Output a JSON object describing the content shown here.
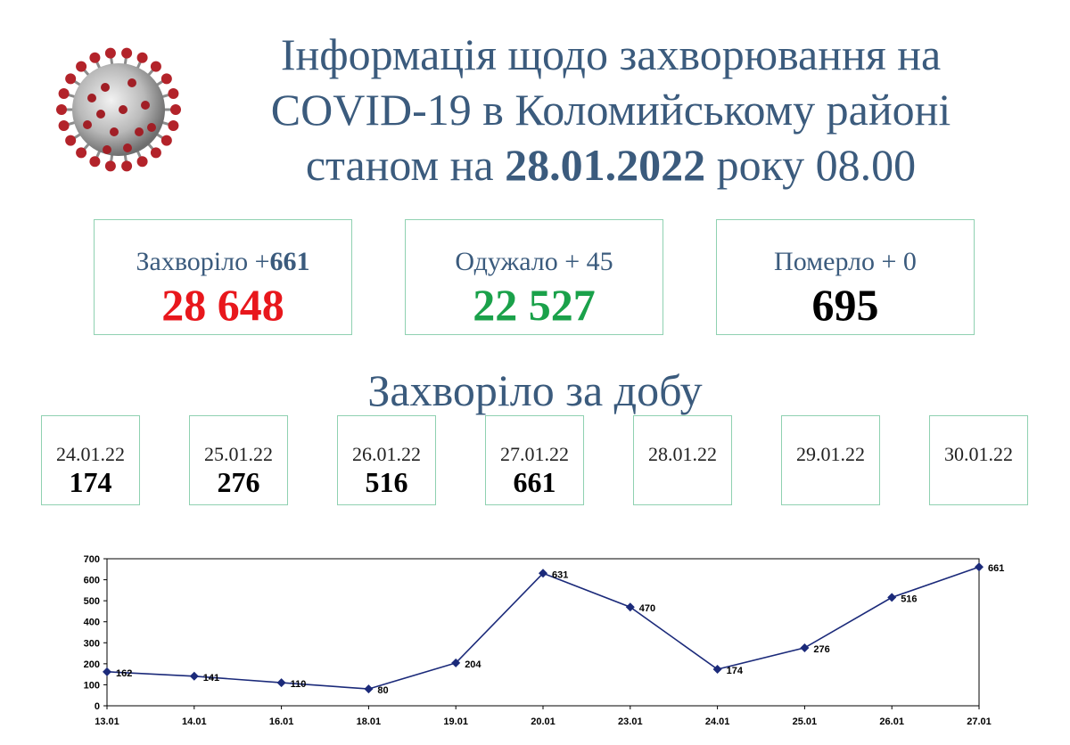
{
  "header": {
    "title_line1": "Інформація щодо захворювання на",
    "title_line2": "COVID-19 в Коломийському районі",
    "title_prefix": "станом на",
    "title_date": "28.01.2022",
    "title_suffix": "року 08.00"
  },
  "stats": {
    "sick": {
      "label": "Захворіло +",
      "delta": "661",
      "value": "28 648",
      "color": "#e8171c"
    },
    "recovered": {
      "label": "Одужало + 45",
      "value": "22 527",
      "color": "#1aa14a"
    },
    "died": {
      "label": "Померло + 0",
      "value": "695",
      "color": "#000000"
    }
  },
  "daily": {
    "title": "Захворіло за добу",
    "days": [
      {
        "date": "24.01.22",
        "value": "174"
      },
      {
        "date": "25.01.22",
        "value": "276"
      },
      {
        "date": "26.01.22",
        "value": "516"
      },
      {
        "date": "27.01.22",
        "value": "661"
      },
      {
        "date": "28.01.22",
        "value": ""
      },
      {
        "date": "29.01.22",
        "value": ""
      },
      {
        "date": "30.01.22",
        "value": ""
      }
    ]
  },
  "chart_data": {
    "type": "line",
    "categories": [
      "13.01",
      "14.01",
      "16.01",
      "18.01",
      "19.01",
      "20.01",
      "23.01",
      "24.01",
      "25.01",
      "26.01",
      "27.01"
    ],
    "values": [
      162,
      141,
      110,
      80,
      204,
      631,
      470,
      174,
      276,
      516,
      661
    ],
    "ylim": [
      0,
      700
    ],
    "yticks": [
      0,
      100,
      200,
      300,
      400,
      500,
      600,
      700
    ],
    "title": "",
    "xlabel": "",
    "ylabel": "",
    "grid": false,
    "color": "#1b2a7a",
    "marker": "diamond"
  }
}
